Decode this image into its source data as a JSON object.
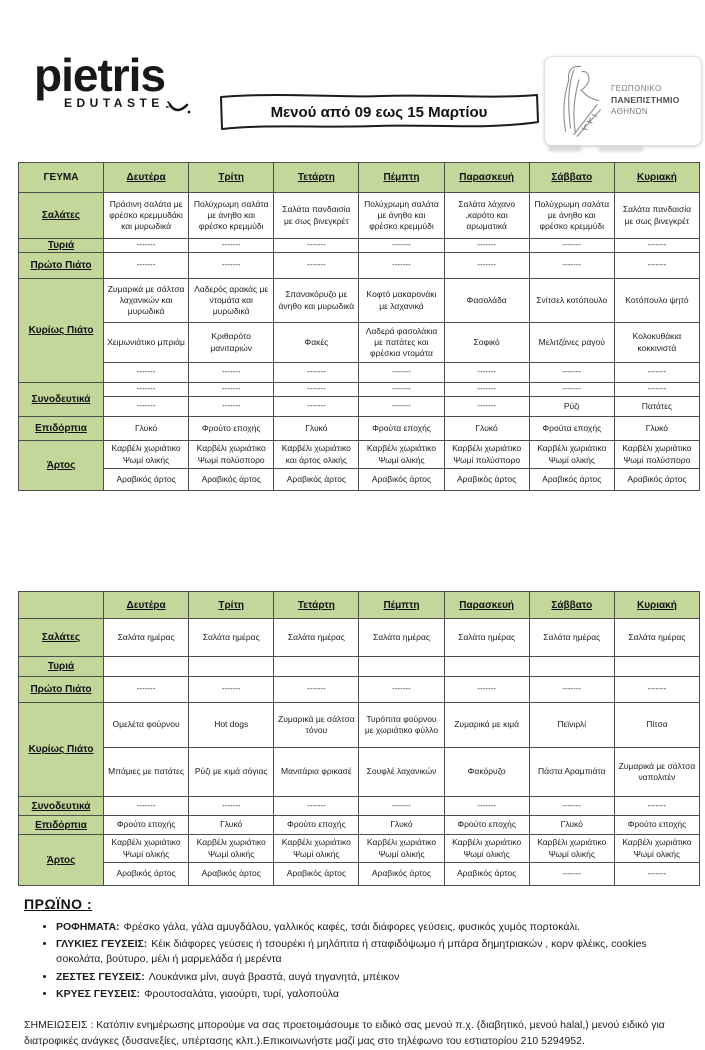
{
  "colors": {
    "header_green": "#c4d79b",
    "table_border": "#4d4d4d"
  },
  "header": {
    "brand_name": "pietris",
    "brand_sub": "EDUTASTE",
    "banner_text": "Μενού από 09 εως 15 Μαρτίου",
    "university": {
      "line1": "ΓΕΩΠΟΝΙΚΟ",
      "line2": "ΠΑΝΕΠΙΣΤΗΜΙΟ",
      "line3": "ΑΘΗΝΩΝ"
    }
  },
  "days": [
    "Δευτέρα",
    "Τρίτη",
    "Τετάρτη",
    "Πέμπτη",
    "Παρασκευή",
    "Σάββατο",
    "Κυριακή"
  ],
  "table1": {
    "corner_label": "ΓΕΥΜΑ",
    "row_groups": [
      {
        "label": "Σαλάτες",
        "rows": [
          [
            "Πράσινη σαλάτα με φρέσκο κρεμμυδάκι και μυρωδικά",
            "Πολύχρωμη σαλάτα με άνηθο και φρέσκο κρεμμύδι",
            "Σαλάτα πανδαισία με σως βινεγκρέτ",
            "Πολύχρωμη σαλάτα με άνηθο και φρέσκο κρεμμύδι",
            "Σαλάτα λάχανο ,καρότο και αρωματικά",
            "Πολύχρωμη σαλάτα με άνηθο και φρέσκο κρεμμύδι",
            "Σαλάτα πανδαισία με σως βινεγκρέτ"
          ]
        ]
      },
      {
        "label": "Τυριά",
        "rows": [
          [
            "-------",
            "-------",
            "-------",
            "-------",
            "-------",
            "-------",
            "-------"
          ]
        ]
      },
      {
        "label": "Πρώτο Πιάτο",
        "rows": [
          [
            "-------",
            "-------",
            "-------",
            "-------",
            "-------",
            "-------",
            "-------"
          ]
        ]
      },
      {
        "label": "Κυρίως Πιάτο",
        "rows": [
          [
            "Ζυμαρικά με σάλτσα λαχανικών και μυρωδικά",
            "Λαδερός αρακάς με ντομάτα και μυρωδικά",
            "Σπανακόρυζο με άνηθο και μυρωδικά",
            "Κοφτό μακαρονάκι με λαχανικά",
            "Φασολάδα",
            "Σνίτσελ κοτόπουλο",
            "Κοτόπουλο ψητό"
          ],
          [
            "Χειμωνιάτικο μπριάμ",
            "Κριθαρότο μανιταριών",
            "Φακές",
            "Λαδερά φασολάκια με πατάτες και φρέσκια ντομάτα",
            "Σοφικό",
            "Μελιτζάνες ραγού",
            "Κολοκυθάκια κοκκινιστά"
          ],
          [
            "-------",
            "-------",
            "-------",
            "-------",
            "-------",
            "-------",
            "-------"
          ]
        ]
      },
      {
        "label": "Συνοδευτικά",
        "rows": [
          [
            "-------",
            "-------",
            "-------",
            "-------",
            "-------",
            "-------",
            "-------"
          ],
          [
            "-------",
            "-------",
            "-------",
            "-------",
            "-------",
            "Ρύζι",
            "Πατάτες"
          ]
        ]
      },
      {
        "label": "Επιδόρπια",
        "rows": [
          [
            "Γλυκό",
            "Φρούτο εποχής",
            "Γλυκό",
            "Φρούτα εποχής",
            "Γλυκό",
            "Φρούτα εποχής",
            "Γλυκό"
          ]
        ]
      },
      {
        "label": "Άρτος",
        "rows": [
          [
            "Καρβέλι χωριάτικο Ψωμί  ολικής",
            "Καρβέλι χωριάτικο Ψωμί πολύσπορο",
            "Καρβέλι χωριάτικο και άρτος ολικής",
            "Καρβέλι χωριάτικο Ψωμί  ολικής",
            "Καρβέλι χωριάτικο Ψωμί πολύσπορο",
            "Καρβέλι χωριάτικο Ψωμί  ολικής",
            "Καρβέλι χωριάτικο Ψωμί πολύσπορο"
          ],
          [
            "Αραβικός άρτος",
            "Αραβικός άρτος",
            "Αραβικός άρτος",
            "Αραβικός άρτος",
            "Αραβικός άρτος",
            "Αραβικός άρτος",
            "Αραβικός άρτος"
          ]
        ]
      }
    ]
  },
  "table2": {
    "corner_label": "",
    "row_groups": [
      {
        "label": "Σαλάτες",
        "rows": [
          [
            "Σαλάτα ημέρας",
            "Σαλάτα ημέρας",
            "Σαλάτα ημέρας",
            "Σαλάτα ημέρας",
            "Σαλάτα ημέρας",
            "Σαλάτα ημέρας",
            "Σαλάτα ημέρας"
          ]
        ]
      },
      {
        "label": "Τυριά",
        "rows": [
          [
            "",
            "",
            "",
            "",
            "",
            "",
            ""
          ]
        ]
      },
      {
        "label": "Πρώτο Πιάτο",
        "rows": [
          [
            "-------",
            "-------",
            "-------",
            "-------",
            "-------",
            "-------",
            "-------"
          ]
        ]
      },
      {
        "label": "Κυρίως Πιάτο",
        "rows": [
          [
            "Ομελέτα φούρνου",
            "Hot dogs",
            "Ζυμαρικά με σάλτσα τόνου",
            "Τυρόπιτα φούρνου με χωριάτικο φύλλο",
            "Ζυμαρικά με κιμά",
            "Πεϊνιρλί",
            "Πίτσα"
          ],
          [
            "Μπάμιες με πατάτες",
            "Ρύζι με κιμά σόγιας",
            "Μανιτάρια φρικασέ",
            "Σουφλέ λαχανικών",
            "Φακόρυζο",
            "Πάστα Αραμπιάτα",
            "Ζυμαρικά με σάλτσα ναπολιτέν"
          ]
        ]
      },
      {
        "label": "Συνοδευτικά",
        "rows": [
          [
            "-------",
            "-------",
            "-------",
            "-------",
            "-------",
            "-------",
            "-------"
          ]
        ]
      },
      {
        "label": "Επιδόρπια",
        "rows": [
          [
            "Φρούτο εποχής",
            "Γλυκό",
            "Φρούτο εποχής",
            "Γλυκό",
            "Φρούτο εποχής",
            "Γλυκό",
            "Φρούτο εποχής"
          ]
        ]
      },
      {
        "label": "Άρτος",
        "rows": [
          [
            "Καρβέλι χωριάτικο Ψωμί  ολικής",
            "Καρβέλι χωριάτικο Ψωμί  ολικής",
            "Καρβέλι χωριάτικο Ψωμί  ολικής",
            "Καρβέλι χωριάτικο Ψωμί  ολικής",
            "Καρβέλι χωριάτικο Ψωμί  ολικής",
            "Καρβέλι χωριάτικο Ψωμί  ολικής",
            "Καρβέλι χωριάτικο Ψωμί  ολικής"
          ],
          [
            "Αραβικός άρτος",
            "Αραβικός άρτος",
            "Αραβικός άρτος",
            "Αραβικός άρτος",
            "Αραβικός άρτος",
            "-------",
            "-------"
          ]
        ]
      }
    ]
  },
  "breakfast": {
    "title": "ΠΡΩΪΝΟ :",
    "items": [
      {
        "label": "ΡΟΦΗΜΑΤΑ:",
        "text": "Φρέσκο γάλα, γάλα αμυγδάλου, γαλλικός καφές, τσάι διάφορες γεύσεις,  φυσικός χυμός πορτοκάλι."
      },
      {
        "label": "ΓΛΥΚΙΕΣ ΓΕΥΣΕΙΣ:",
        "text": "Κέικ διάφορες γεύσεις ή τσουρέκι ή μηλόπιτα ή σταφιδόψωμο ή μπάρα δημητριακών , κορν φλέικς,  cookies σοκολάτα, βούτυρο, μέλι ή μαρμελάδα ή μερέντα"
      },
      {
        "label": "ΖΕΣΤΕΣ ΓΕΥΣΕΙΣ:",
        "text": "Λουκάνικα μίνι, αυγά βραστά,  αυγά τηγανητά,  μπέικον"
      },
      {
        "label": "ΚΡΥΕΣ ΓΕΥΣΕΙΣ:",
        "text": "Φρουτοσαλάτα,  γιαούρτι, τυρί, γαλοπούλα"
      }
    ]
  },
  "notes_text": "ΣΗΜΕΙΩΣΕΙΣ  :  Κατόπιν ενημέρωσης μπορούμε να σας προετοιμάσουμε το ειδικό σας μενού  π.χ.  (διαβητικό, μενού halal,) μενού ειδικό για   διατροφικές ανάγκες (δυσανεξίες, υπέρτασης κλπ.).Επικοινωνήστε μαζί μας στο τηλέφωνο του εστιατορίου  210 5294952."
}
